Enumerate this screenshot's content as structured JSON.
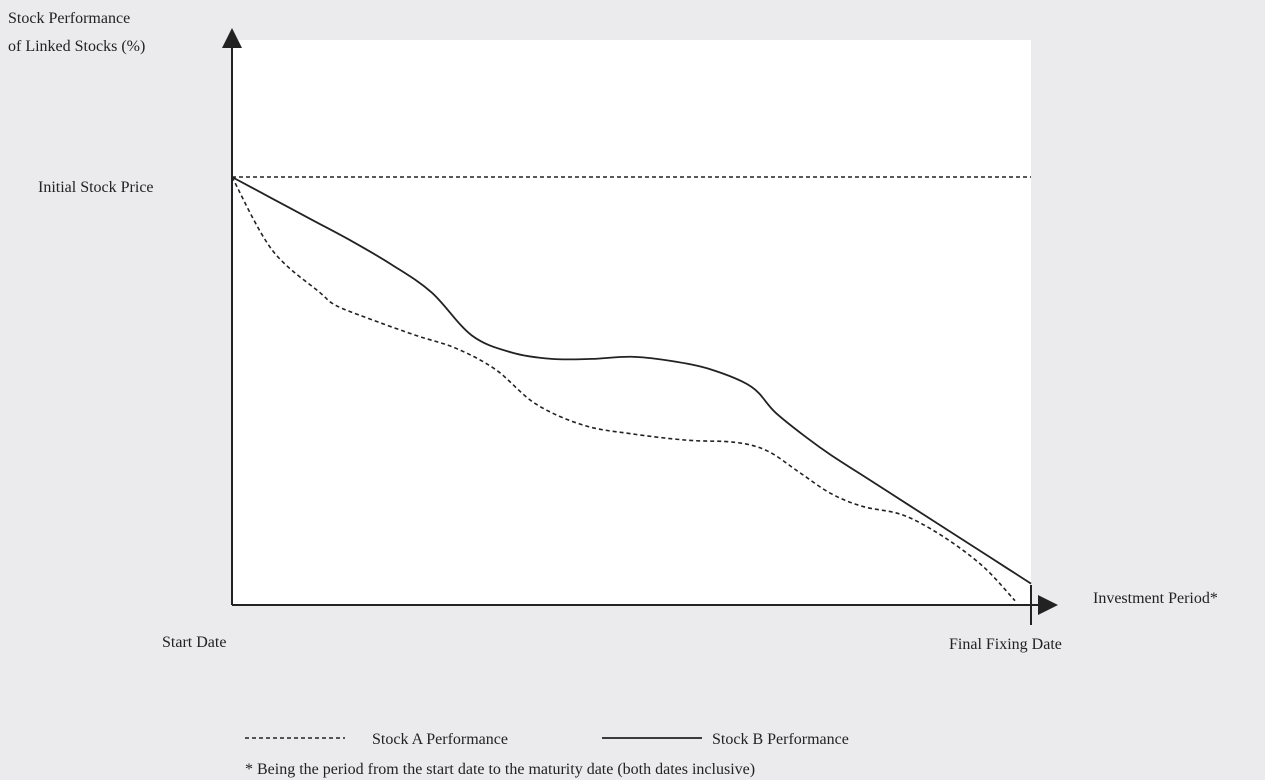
{
  "chart_data": {
    "type": "line",
    "ylabel_line1": "Stock Performance",
    "ylabel_line2": "of Linked Stocks (%)",
    "xlabel": "Investment Period*",
    "y_reference_label": "Initial Stock Price",
    "x_start_label": "Start Date",
    "x_end_label": "Final Fixing Date",
    "footnote": "* Being the period from the start date to the maturity date (both dates inclusive)",
    "xlim": [
      0,
      100
    ],
    "ylim": [
      0,
      100
    ],
    "reference_level": 100,
    "series": [
      {
        "name": "Stock A Performance",
        "style": "dashed",
        "color": "#222222",
        "x": [
          0,
          5,
          11,
          13,
          17,
          23,
          28,
          33,
          38,
          44,
          50,
          57,
          63,
          67,
          71,
          75,
          79,
          84,
          89,
          94,
          98
        ],
        "y": [
          100,
          83,
          73,
          70,
          67,
          63,
          60,
          55,
          47,
          42,
          40,
          38.5,
          38,
          36,
          31,
          26,
          23,
          21,
          16,
          9,
          1
        ]
      },
      {
        "name": "Stock B Performance",
        "style": "solid",
        "color": "#222222",
        "x": [
          0,
          5,
          10,
          15,
          20,
          25,
          30,
          35,
          40,
          45,
          50,
          55,
          60,
          65,
          68,
          72,
          75,
          80,
          85,
          90,
          95,
          100
        ],
        "y": [
          100,
          95,
          90,
          85,
          79.5,
          73,
          63,
          59,
          57.5,
          57.5,
          58,
          57,
          55,
          51,
          45,
          39,
          35,
          29,
          23,
          17,
          11,
          5
        ]
      }
    ],
    "legend_position": "bottom"
  }
}
